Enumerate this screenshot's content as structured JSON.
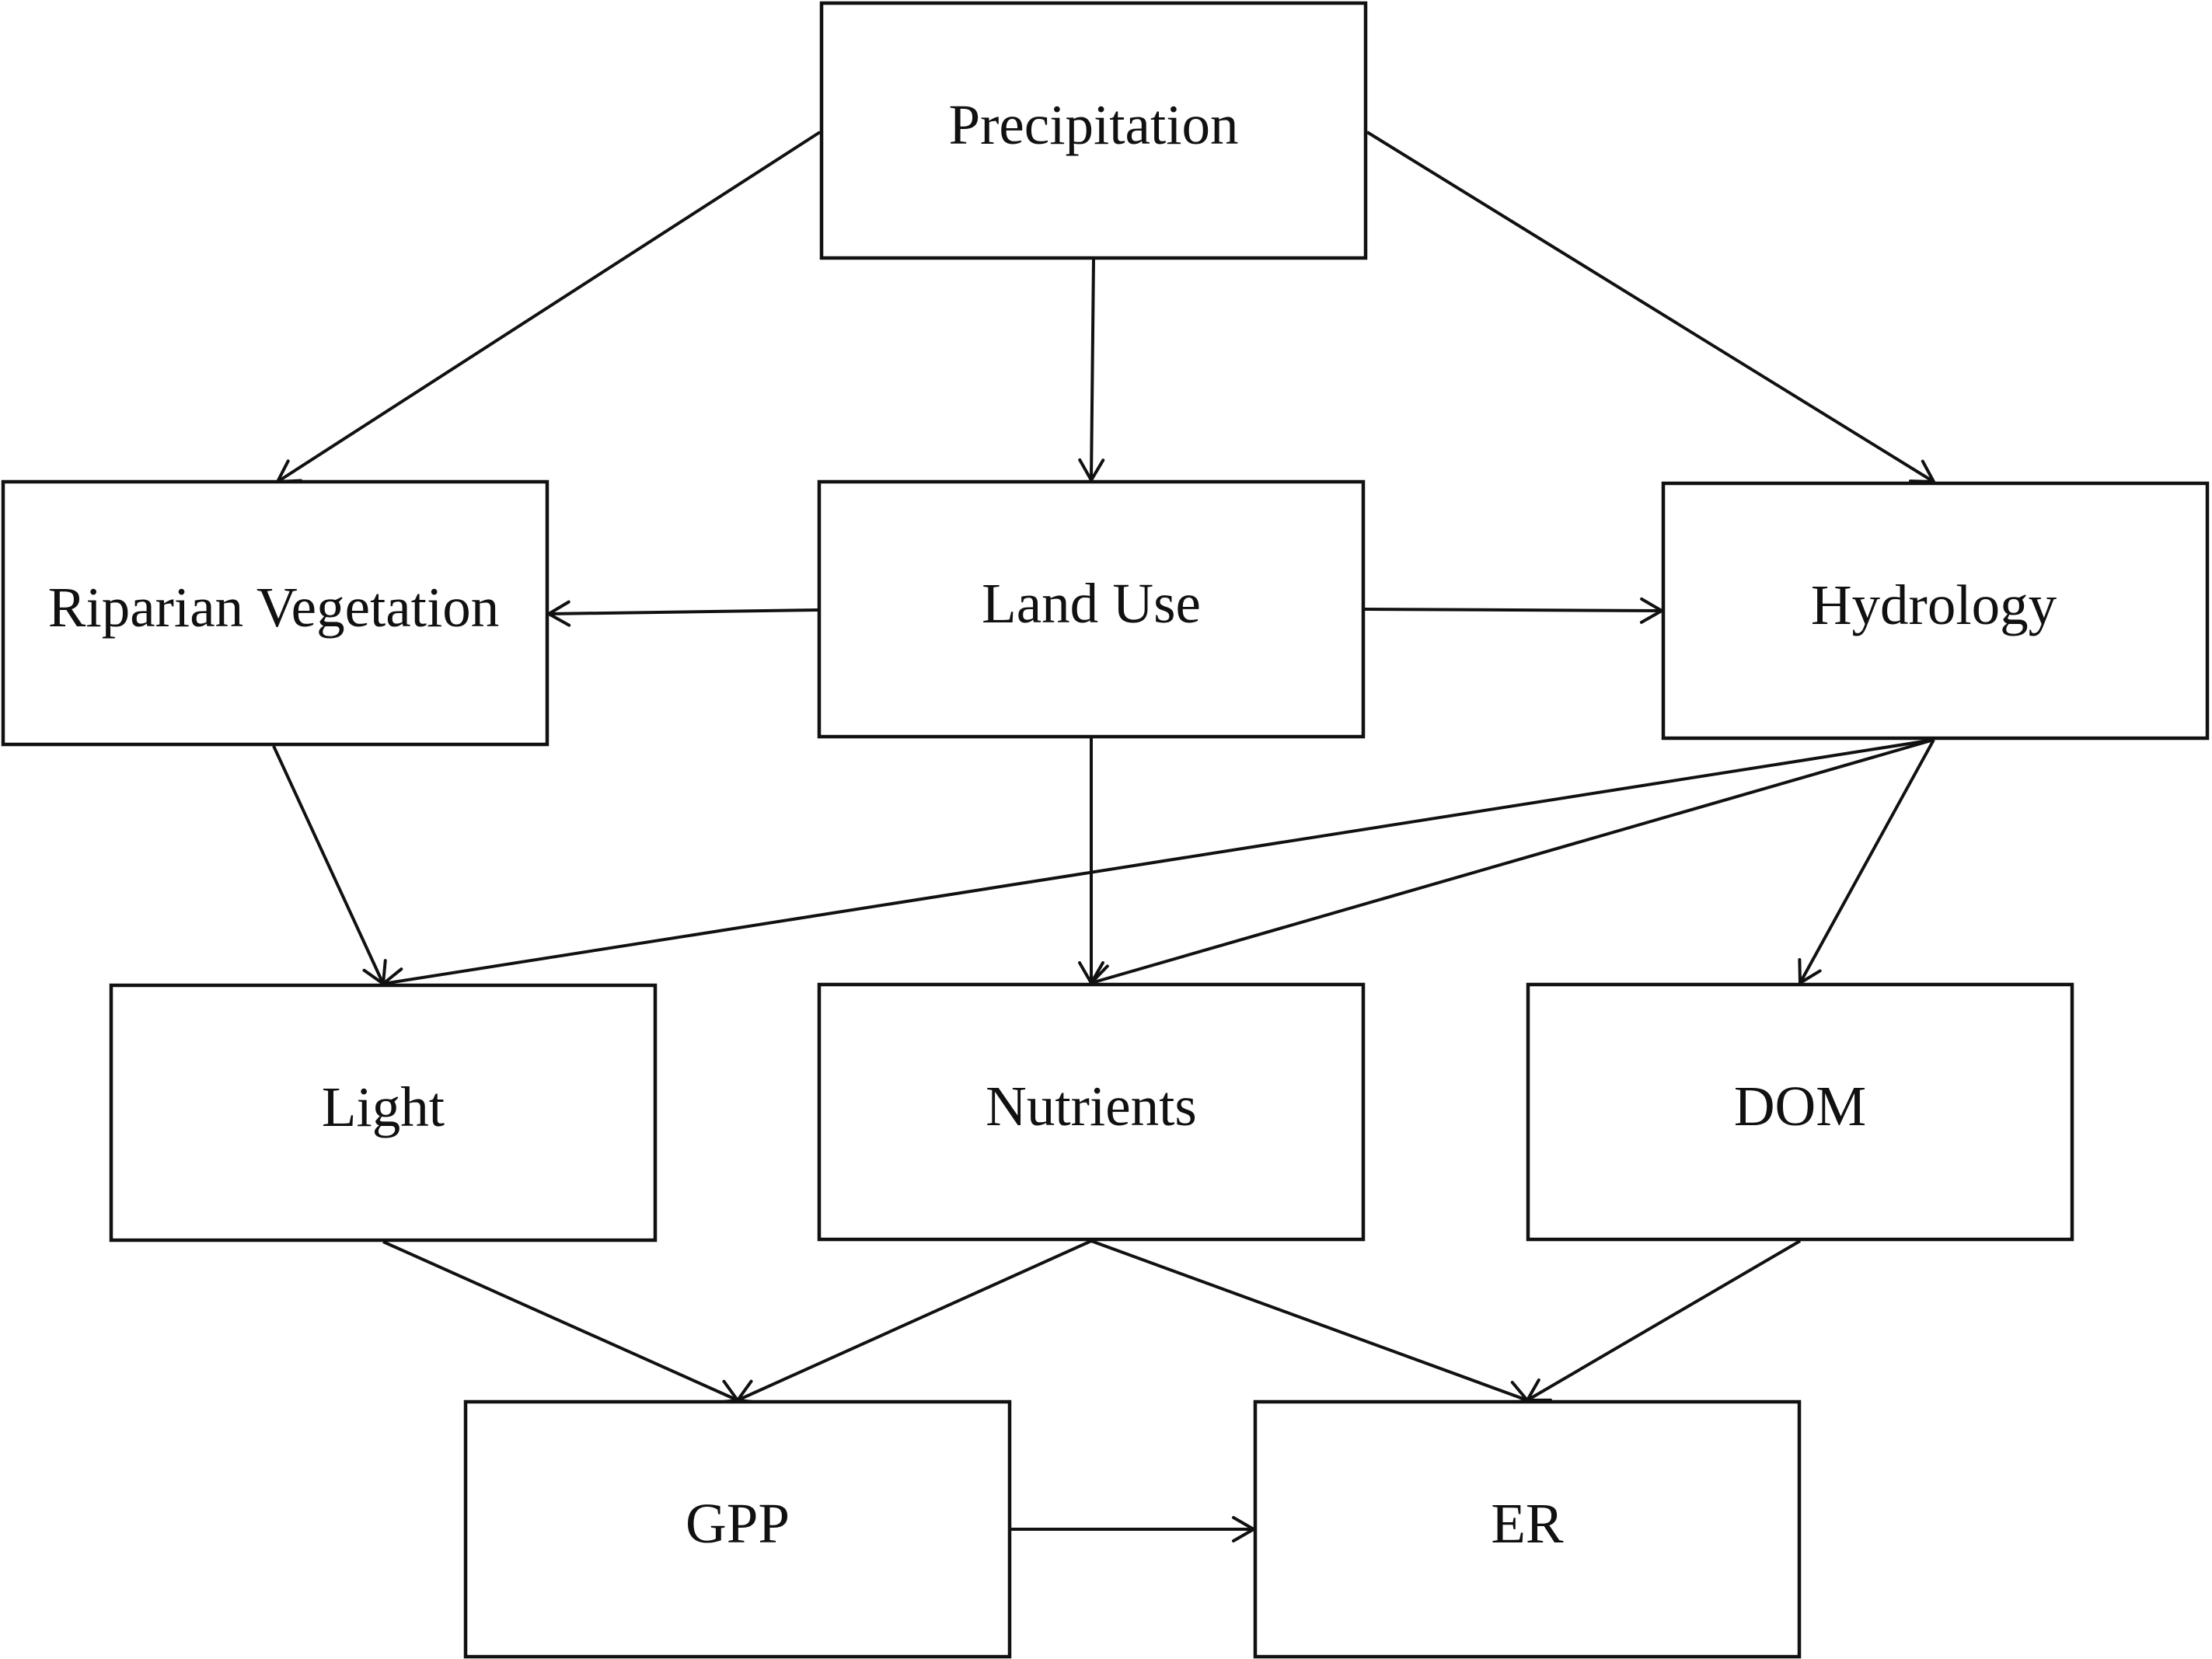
{
  "diagram": {
    "nodes": {
      "precipitation": "Precipitation",
      "riparian_vegetation": "Riparian Vegetation",
      "land_use": "Land Use",
      "hydrology": "Hydrology",
      "light": "Light",
      "nutrients": "Nutrients",
      "dom": "DOM",
      "gpp": "GPP",
      "er": "ER"
    },
    "edges": [
      {
        "from": "precipitation",
        "to": "riparian_vegetation"
      },
      {
        "from": "precipitation",
        "to": "land_use"
      },
      {
        "from": "precipitation",
        "to": "hydrology"
      },
      {
        "from": "land_use",
        "to": "riparian_vegetation"
      },
      {
        "from": "land_use",
        "to": "hydrology"
      },
      {
        "from": "land_use",
        "to": "nutrients"
      },
      {
        "from": "riparian_vegetation",
        "to": "light"
      },
      {
        "from": "hydrology",
        "to": "light"
      },
      {
        "from": "hydrology",
        "to": "nutrients"
      },
      {
        "from": "hydrology",
        "to": "dom"
      },
      {
        "from": "light",
        "to": "gpp"
      },
      {
        "from": "nutrients",
        "to": "gpp"
      },
      {
        "from": "nutrients",
        "to": "er"
      },
      {
        "from": "dom",
        "to": "er"
      },
      {
        "from": "gpp",
        "to": "er"
      }
    ]
  }
}
